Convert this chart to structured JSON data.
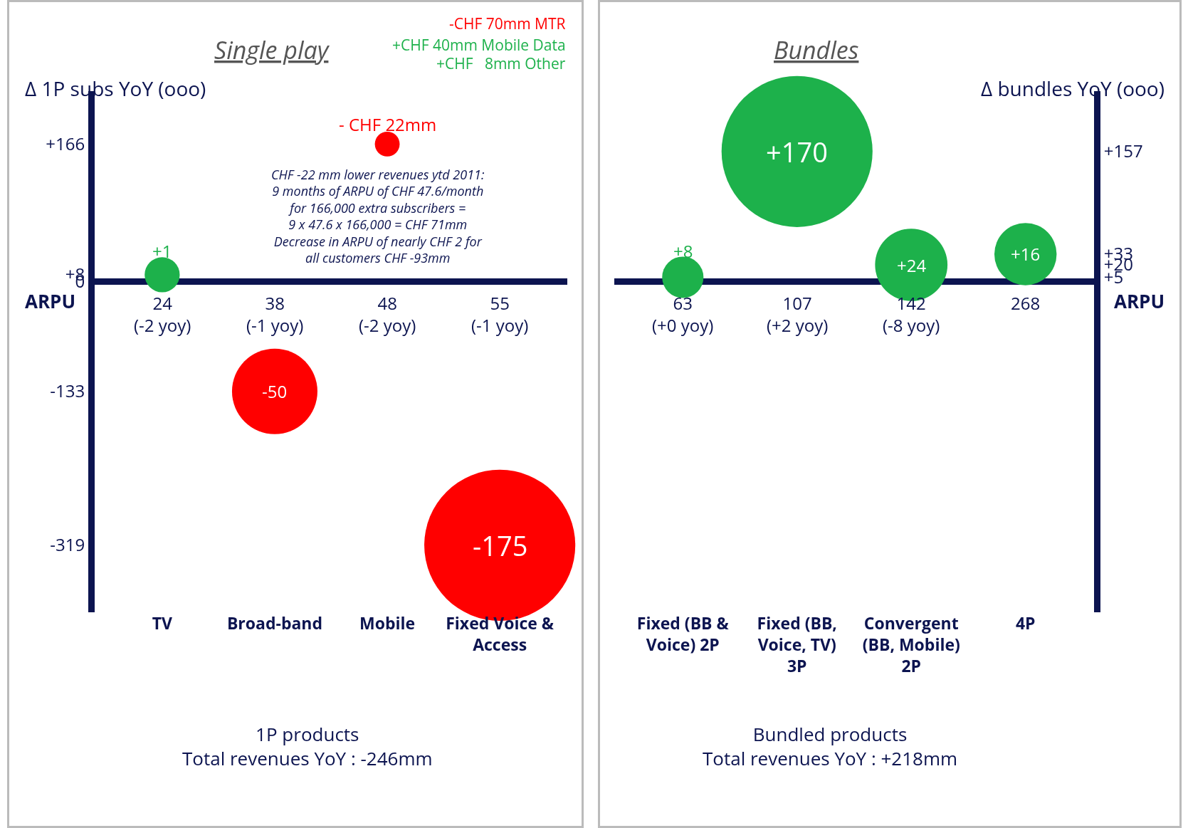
{
  "chart_data": [
    {
      "type": "bubble",
      "title": "Single play",
      "ylabel": "Δ 1P subs YoY (ooo)",
      "xlabel": "ARPU",
      "categories": [
        "TV",
        "Broad-band",
        "Mobile",
        "Fixed Voice & Access"
      ],
      "values": [
        8,
        -133,
        166,
        -319
      ],
      "sizes": [
        0.054,
        0.32,
        0.027,
        1
      ],
      "colors": [
        "#1db14b",
        "#ff0000",
        "#ff0000",
        "#ff0000"
      ],
      "ylim": [
        -400,
        230
      ],
      "yticks": [
        {
          "value": 166,
          "label": "+166"
        },
        {
          "value": 8,
          "label": "+8"
        },
        0,
        -133,
        -319
      ],
      "grid": false,
      "legend": false,
      "annotations": [
        "-CHF 70mm MTR",
        "+CHF 40mm Mobile Data",
        "+CHF   8mm Other",
        "CHF -22 mm lower revenues ytd 2011:\n9 months of ARPU of CHF 47.6/month\nfor 166,000 extra subscribers =\n9 x 47.6 x 166,000 = CHF 71mm\nDecrease in ARPU of nearly CHF 2 for\nall customers CHF -93mm",
        "24\n(-2 yoy)",
        "38\n(-1 yoy)",
        "48\n(-2 yoy)",
        "55\n(-1 yoy)",
        "1P products\nTotal revenues YoY : -246mm",
        {
          "text": "+1",
          "x": "TV",
          "y": 8
        },
        {
          "text": "-50",
          "x": "Broad-band",
          "y": -133
        },
        {
          "text": "- CHF 22mm",
          "x": "Mobile",
          "y": 166
        },
        {
          "text": "-175",
          "x": "Fixed Voice & Access",
          "y": -319
        }
      ]
    },
    {
      "type": "bubble",
      "title": "Bundles",
      "ylabel": "Δ bundles YoY (ooo)",
      "xlabel": "ARPU",
      "categories": [
        "Fixed (BB & Voice) 2P",
        "Fixed (BB, Voice, TV) 3P",
        "Convergent (BB, Mobile) 2P",
        "4P"
      ],
      "values": [
        5,
        157,
        20,
        33
      ],
      "sizes": [
        0.075,
        1,
        0.23,
        0.17
      ],
      "colors": [
        "#1db14b",
        "#1db14b",
        "#1db14b",
        "#1db14b"
      ],
      "ylim": [
        -400,
        230
      ],
      "yticks": [
        {
          "value": 157,
          "label": "+157"
        },
        {
          "value": 33,
          "label": "+33"
        },
        {
          "value": 20,
          "label": "+20"
        },
        {
          "value": 5,
          "label": "+5"
        }
      ],
      "grid": false,
      "legend": false,
      "annotations": [
        "63\n(+0 yoy)",
        "107\n(+2 yoy)",
        "142\n(-8 yoy)",
        "268",
        "Bundled products\nTotal revenues YoY : +218mm",
        {
          "text": "+8",
          "x": "Fixed (BB & Voice) 2P",
          "y": 5
        },
        {
          "text": "+170",
          "x": "Fixed (BB, Voice, TV) 3P",
          "y": 157
        },
        {
          "text": "+24",
          "x": "Convergent (BB, Mobile) 2P",
          "y": 20
        },
        {
          "text": "+16",
          "x": "4P",
          "y": 33
        }
      ]
    }
  ]
}
